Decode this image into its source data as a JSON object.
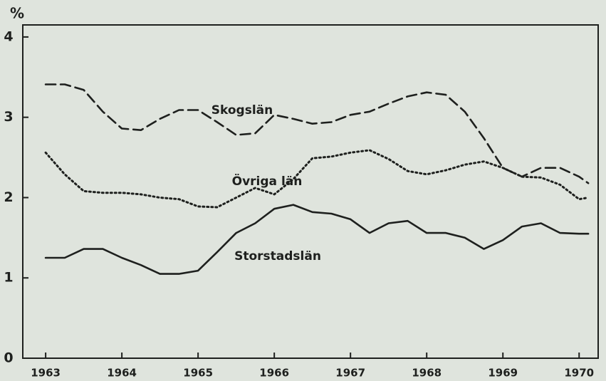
{
  "chart_data": {
    "type": "line",
    "ylabel": "%",
    "x": [
      1963,
      1963.25,
      1963.5,
      1963.75,
      1964,
      1964.25,
      1964.5,
      1964.75,
      1965,
      1965.25,
      1965.5,
      1965.75,
      1966,
      1966.25,
      1966.5,
      1966.75,
      1967,
      1967.25,
      1967.5,
      1967.75,
      1968,
      1968.25,
      1968.5,
      1968.75,
      1969,
      1969.25,
      1969.5,
      1969.75,
      1970,
      1970.12
    ],
    "series": [
      {
        "name": "Skogslän",
        "color": "#1e201e",
        "style": "dashed",
        "values": [
          3.41,
          3.41,
          3.34,
          3.07,
          2.86,
          2.84,
          2.98,
          3.09,
          3.09,
          2.94,
          2.78,
          2.8,
          3.03,
          2.98,
          2.92,
          2.94,
          3.03,
          3.07,
          3.17,
          3.26,
          3.31,
          3.28,
          3.07,
          2.74,
          2.37,
          2.26,
          2.37,
          2.37,
          2.26,
          2.18
        ]
      },
      {
        "name": "Övriga län",
        "color": "#1e201e",
        "style": "dotted",
        "values": [
          2.56,
          2.29,
          2.08,
          2.06,
          2.06,
          2.04,
          2.0,
          1.98,
          1.89,
          1.88,
          2.0,
          2.12,
          2.04,
          2.23,
          2.49,
          2.51,
          2.56,
          2.59,
          2.48,
          2.33,
          2.29,
          2.34,
          2.41,
          2.45,
          2.37,
          2.26,
          2.25,
          2.16,
          1.98,
          2.0
        ]
      },
      {
        "name": "Storstadslän",
        "color": "#1e201e",
        "style": "solid",
        "values": [
          1.25,
          1.25,
          1.36,
          1.36,
          1.25,
          1.16,
          1.05,
          1.05,
          1.09,
          1.32,
          1.56,
          1.68,
          1.86,
          1.91,
          1.82,
          1.8,
          1.73,
          1.56,
          1.68,
          1.71,
          1.56,
          1.56,
          1.5,
          1.36,
          1.47,
          1.64,
          1.68,
          1.56,
          1.55,
          1.55
        ]
      }
    ],
    "xlim": [
      1962.7,
      1970.25
    ],
    "xticks": [
      1963,
      1964,
      1965,
      1966,
      1967,
      1968,
      1969,
      1970
    ],
    "ylim": [
      0,
      4.15
    ],
    "yticks": [
      0,
      1,
      2,
      3,
      4
    ],
    "grid": false
  }
}
